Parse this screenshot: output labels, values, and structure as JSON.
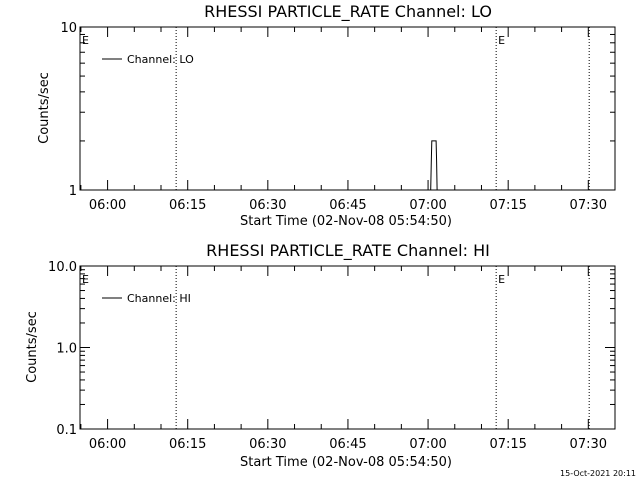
{
  "chart_data": [
    {
      "type": "line",
      "title": "RHESSI PARTICLE_RATE Channel: LO",
      "xlabel": "Start Time (02-Nov-08 05:54:50)",
      "ylabel": "Counts/sec",
      "xlim": [
        "05:54:50",
        "07:35:00"
      ],
      "ylim": [
        1,
        10
      ],
      "ylog": true,
      "xticks": [
        "06:00",
        "06:15",
        "06:30",
        "06:45",
        "07:00",
        "07:15",
        "07:30"
      ],
      "yticks": [
        "1",
        "10"
      ],
      "legend": "top-left",
      "grid": false,
      "series": [
        {
          "name": "Channel: LO",
          "points": [
            [
              "07:00:30",
              1
            ],
            [
              "07:00:36",
              1.5
            ],
            [
              "07:00:42",
              2
            ],
            [
              "07:01:30",
              2
            ],
            [
              "07:01:36",
              1.5
            ],
            [
              "07:01:42",
              1
            ]
          ]
        }
      ],
      "markers": [
        {
          "label": "E",
          "time": "05:54:50"
        },
        {
          "label": "",
          "time": "06:12:50"
        },
        {
          "label": "E",
          "time": "07:12:45"
        },
        {
          "label": "",
          "time": "07:30:10"
        }
      ]
    },
    {
      "type": "line",
      "title": "RHESSI PARTICLE_RATE Channel: HI",
      "xlabel": "Start Time (02-Nov-08 05:54:50)",
      "ylabel": "Counts/sec",
      "xlim": [
        "05:54:50",
        "07:35:00"
      ],
      "ylim": [
        0.1,
        10
      ],
      "ylog": true,
      "xticks": [
        "06:00",
        "06:15",
        "06:30",
        "06:45",
        "07:00",
        "07:15",
        "07:30"
      ],
      "yticks": [
        "0.1",
        "1.0",
        "10.0"
      ],
      "legend": "top-left",
      "grid": false,
      "series": [
        {
          "name": "Channel: HI",
          "points": []
        }
      ],
      "markers": [
        {
          "label": "E",
          "time": "05:54:50"
        },
        {
          "label": "",
          "time": "06:12:50"
        },
        {
          "label": "E",
          "time": "07:12:45"
        },
        {
          "label": "",
          "time": "07:30:10"
        }
      ]
    }
  ],
  "footer": {
    "timestamp": "15-Oct-2021 20:11"
  }
}
